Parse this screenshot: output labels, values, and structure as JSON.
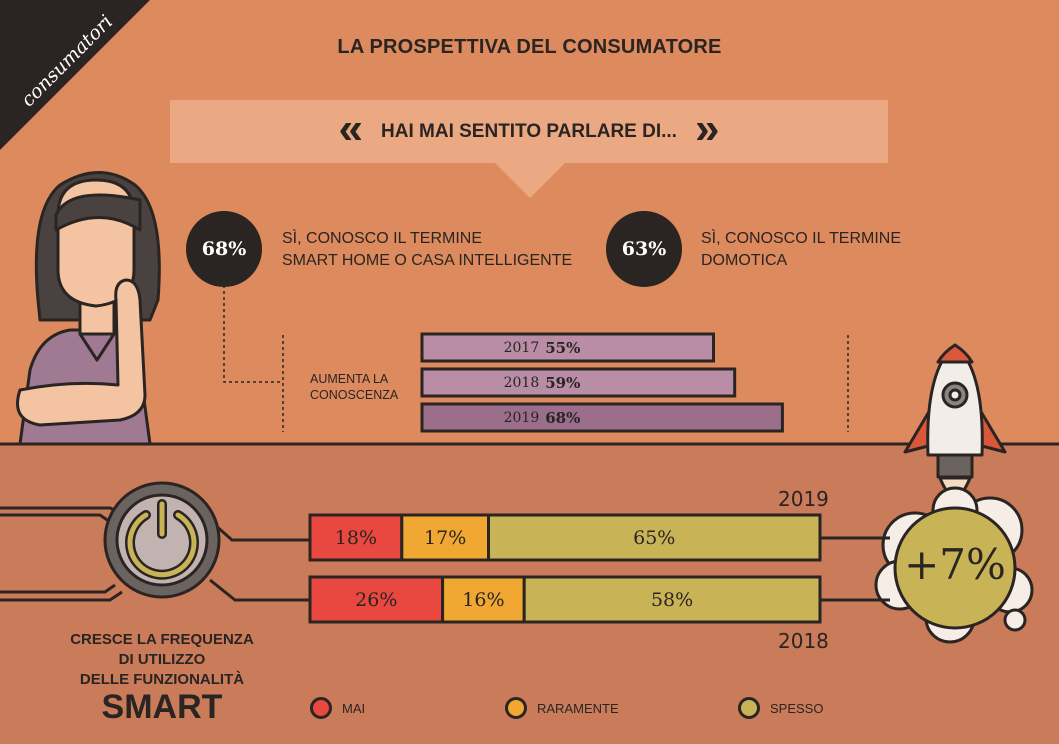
{
  "corner_tag": "consumatori",
  "title": "LA PROSPETTIVA DEL CONSUMATORE",
  "question": "HAI MAI SENTITO PARLARE DI...",
  "stats": [
    {
      "value": "68%",
      "text_line1": "SÌ, CONOSCO IL TERMINE",
      "text_line2": "SMART HOME O CASA INTELLIGENTE"
    },
    {
      "value": "63%",
      "text_line1": "SÌ, CONOSCO IL TERMINE",
      "text_line2": "DOMOTICA"
    }
  ],
  "awareness_label_line1": "AUMENTA LA",
  "awareness_label_line2": "CONOSCENZA",
  "frequency_label_line1": "CRESCE LA FREQUENZA",
  "frequency_label_line2": "DI UTILIZZO",
  "frequency_label_line3": "DELLE FUNZIONALITÀ",
  "frequency_label_big": "SMART",
  "growth_badge": "+7%",
  "colors": {
    "background_top": "#dc8a5e",
    "background_bottom": "#c97b5a",
    "mai": "#e8483f",
    "raramente": "#f0a832",
    "spesso": "#c8b457",
    "bar_awareness": "#b98da5",
    "bar_awareness_latest": "#9b6e8c",
    "dark": "#2a2422"
  },
  "chart_data": [
    {
      "type": "bar",
      "orientation": "horizontal",
      "categories": [
        "2017",
        "2018",
        "2019"
      ],
      "values": [
        55,
        59,
        68
      ],
      "value_labels": [
        "55%",
        "59%",
        "68%"
      ],
      "xlim": [
        0,
        100
      ]
    },
    {
      "type": "bar",
      "orientation": "horizontal",
      "stacked": true,
      "categories": [
        "2019",
        "2018"
      ],
      "series": [
        {
          "name": "MAI",
          "values": [
            18,
            26
          ],
          "labels": [
            "18%",
            "26%"
          ],
          "color": "#e8483f"
        },
        {
          "name": "RARAMENTE",
          "values": [
            17,
            16
          ],
          "labels": [
            "17%",
            "16%"
          ],
          "color": "#f0a832"
        },
        {
          "name": "SPESSO",
          "values": [
            65,
            58
          ],
          "labels": [
            "65%",
            "58%"
          ],
          "color": "#c8b457"
        }
      ],
      "legend": "bottom",
      "xlim": [
        0,
        100
      ]
    }
  ]
}
